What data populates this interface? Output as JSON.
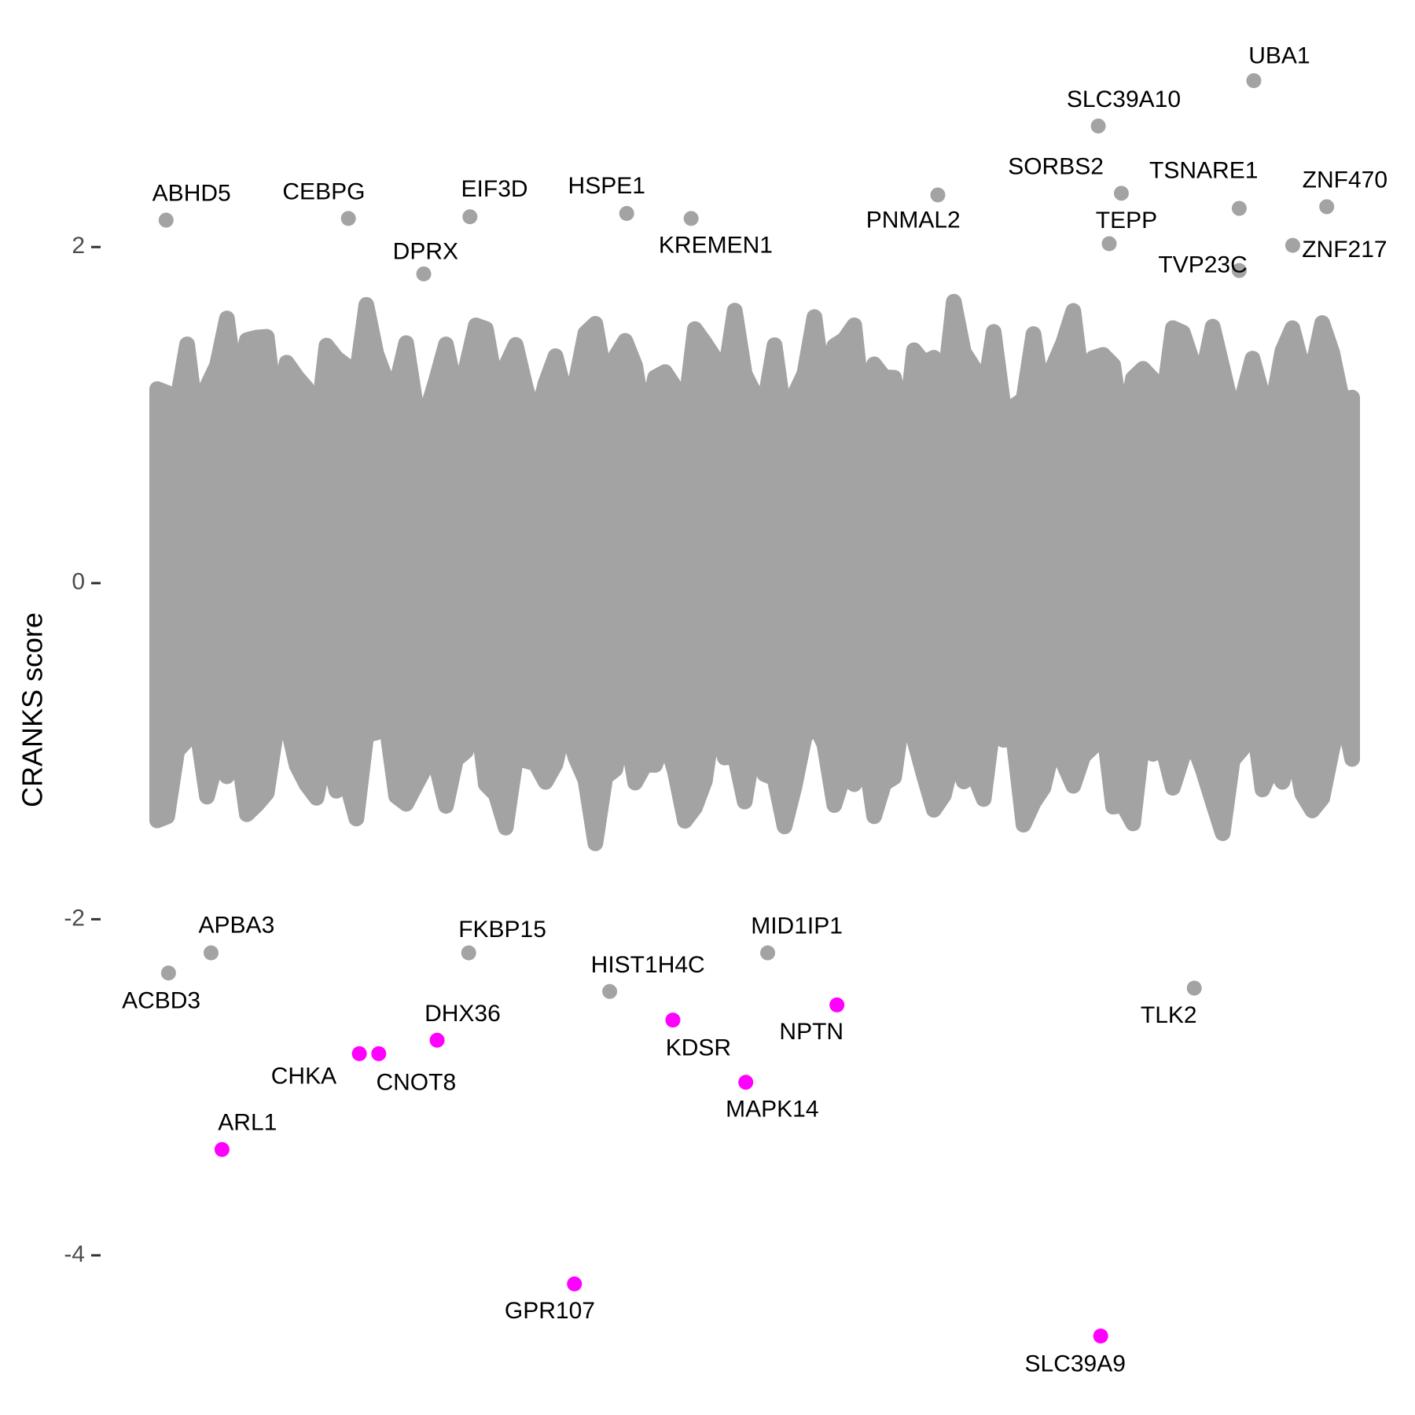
{
  "chart_data": {
    "type": "scatter",
    "y_label": "CRANKS score",
    "ylim": [
      -4.95,
      3.47
    ],
    "yticks": [
      -4,
      -2,
      0,
      2
    ],
    "xlim": [
      0,
      100
    ],
    "grid": false,
    "series": [
      {
        "color": "#a3a3a3",
        "labels": [
          "UBA1",
          "SLC39A10",
          "SORBS2",
          "TSNARE1",
          "ZNF470",
          "TEPP",
          "TVP23C",
          "ZNF217",
          "ABHD5",
          "CEBPG",
          "EIF3D",
          "HSPE1",
          "DPRX",
          "KREMEN1",
          "PNMAL2",
          "APBA3",
          "ACBD3",
          "FKBP15",
          "HIST1H4C",
          "MID1IP1",
          "TLK2"
        ],
        "x": [
          91.2,
          78.4,
          80.3,
          90.0,
          97.2,
          79.3,
          90.0,
          94.4,
          1.7,
          16.7,
          26.7,
          39.6,
          22.9,
          44.9,
          65.2,
          5.4,
          1.9,
          26.6,
          38.2,
          51.2,
          86.3
        ],
        "values": [
          2.99,
          2.72,
          2.32,
          2.23,
          2.24,
          2.02,
          1.86,
          2.01,
          2.16,
          2.17,
          2.18,
          2.2,
          1.84,
          2.17,
          2.31,
          -2.2,
          -2.32,
          -2.2,
          -2.43,
          -2.2,
          -2.41
        ]
      },
      {
        "color": "#ff00ff",
        "labels": [
          "ARL1",
          "CHKA",
          "CNOT8",
          "DHX36",
          "KDSR",
          "NPTN",
          "MAPK14",
          "GPR107",
          "SLC39A9"
        ],
        "x": [
          6.3,
          17.6,
          19.2,
          24.0,
          43.4,
          56.9,
          49.4,
          35.3,
          78.6
        ],
        "values": [
          -3.37,
          -2.8,
          -2.8,
          -2.72,
          -2.6,
          -2.51,
          -2.97,
          -4.17,
          -4.48
        ]
      }
    ]
  }
}
